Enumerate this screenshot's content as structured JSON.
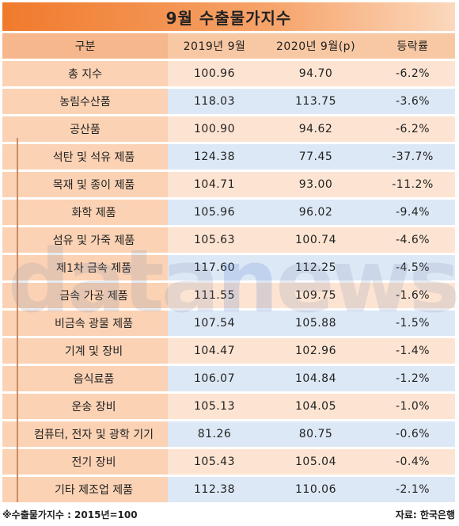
{
  "title": "9월 수출물가지수",
  "header": [
    "구분",
    "2019년 9월",
    "2020년 9월(p)",
    "등락률"
  ],
  "rows": [
    {
      "label": "총 지수",
      "v2019": "100.96",
      "v2020": "94.70",
      "change": "-6.2%"
    },
    {
      "label": "농림수산품",
      "v2019": "118.03",
      "v2020": "113.75",
      "change": "-3.6%"
    },
    {
      "label": "공산품",
      "v2019": "100.90",
      "v2020": "94.62",
      "change": "-6.2%"
    },
    {
      "label": "석탄 및 석유 제품",
      "v2019": "124.38",
      "v2020": "77.45",
      "change": "-37.7%"
    },
    {
      "label": "목재 및 종이 제품",
      "v2019": "104.71",
      "v2020": "93.00",
      "change": "-11.2%"
    },
    {
      "label": "화학 제품",
      "v2019": "105.96",
      "v2020": "96.02",
      "change": "-9.4%"
    },
    {
      "label": "섬유 및 가죽 제품",
      "v2019": "105.63",
      "v2020": "100.74",
      "change": "-4.6%"
    },
    {
      "label": "제1차 금속 제품",
      "v2019": "117.60",
      "v2020": "112.25",
      "change": "-4.5%"
    },
    {
      "label": "금속 가공 제품",
      "v2019": "111.55",
      "v2020": "109.75",
      "change": "-1.6%"
    },
    {
      "label": "비금속 광물 제품",
      "v2019": "107.54",
      "v2020": "105.88",
      "change": "-1.5%"
    },
    {
      "label": "기계 및 장비",
      "v2019": "104.47",
      "v2020": "102.96",
      "change": "-1.4%"
    },
    {
      "label": "음식료품",
      "v2019": "106.07",
      "v2020": "104.84",
      "change": "-1.2%"
    },
    {
      "label": "운송 장비",
      "v2019": "105.13",
      "v2020": "104.05",
      "change": "-1.0%"
    },
    {
      "label": "컴퓨터, 전자 및 광학 기기",
      "v2019": "81.26",
      "v2020": "80.75",
      "change": "-0.6%"
    },
    {
      "label": "전기 장비",
      "v2019": "105.43",
      "v2020": "105.04",
      "change": "-0.4%"
    },
    {
      "label": "기타 제조업 제품",
      "v2019": "112.38",
      "v2020": "110.06",
      "change": "-2.1%"
    }
  ],
  "watermark": "datanews",
  "footer": {
    "note": "※수출물가지수 : 2015년=100",
    "source": "자료: 한국은행"
  },
  "colors": {
    "title_bg": "#f07a2c",
    "header_bg": "#f8c8a4",
    "peach_row": "#fde4d2",
    "blue_row": "#dde8f6",
    "label_col": "#fbd2b4"
  }
}
